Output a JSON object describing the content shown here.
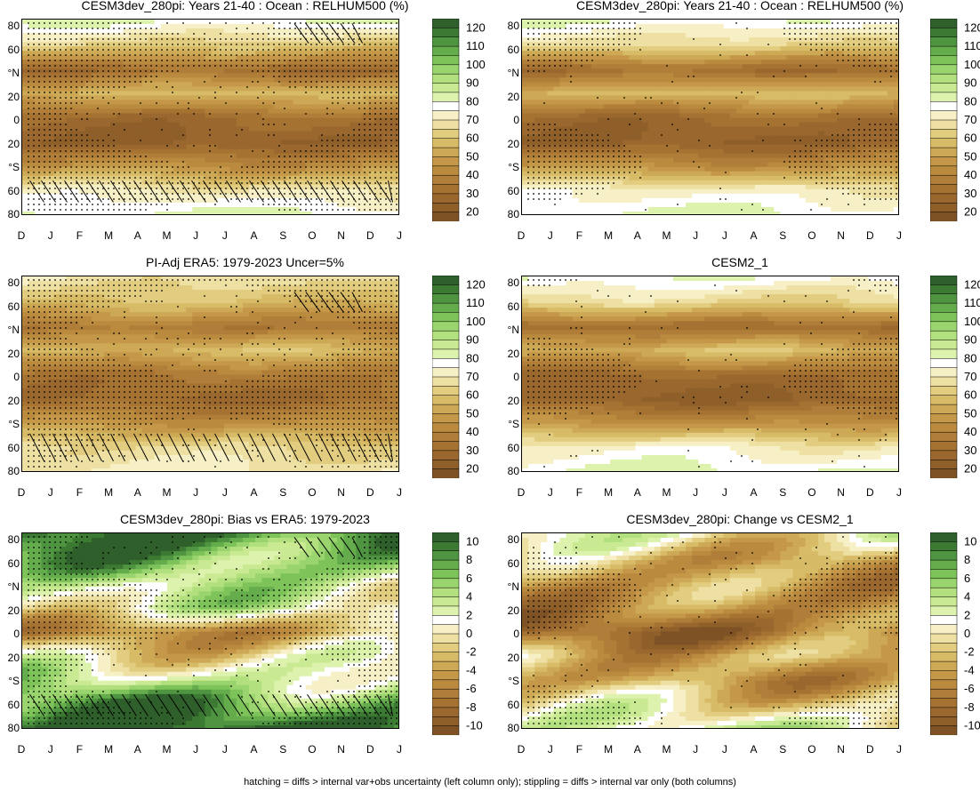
{
  "footnote": "hatching = diffs > internal var+obs uncertainty (left column only); stippling = diffs > internal var only (both columns)",
  "chart_data": [
    {
      "type": "heatmap",
      "title": "CESM3dev_280pi: Years 21-40 : Ocean : RELHUM500 (%)",
      "ylabel_ticks": [
        "80",
        "60",
        "°N",
        "20",
        "0",
        "20",
        "°S",
        "60",
        "80"
      ],
      "xlabel_ticks": [
        "D",
        "J",
        "F",
        "M",
        "A",
        "M",
        "J",
        "J",
        "A",
        "S",
        "O",
        "N",
        "D",
        "J"
      ],
      "colorbar_ticks": [
        "120",
        "110",
        "100",
        "90",
        "80",
        "70",
        "60",
        "50",
        "40",
        "30",
        "20"
      ],
      "colorbar_levels": [
        125,
        120,
        115,
        110,
        105,
        100,
        95,
        90,
        85,
        80,
        75,
        70,
        65,
        60,
        55,
        50,
        45,
        40,
        35,
        30,
        25,
        20,
        15
      ],
      "palette": "brown-green",
      "stipple": "heavy",
      "hatch": [
        [
          0.72,
          0.02,
          0.9,
          0.12
        ],
        [
          0.02,
          0.82,
          0.98,
          0.93
        ]
      ],
      "profile": [
        [
          80,
          80
        ],
        [
          62,
          62
        ],
        [
          30,
          30
        ],
        [
          55,
          58
        ],
        [
          30,
          30
        ],
        [
          25,
          25
        ],
        [
          45,
          45
        ],
        [
          70,
          70
        ],
        [
          80,
          80
        ]
      ]
    },
    {
      "type": "heatmap",
      "title": "CESM3dev_280pi: Years 21-40 : Ocean : RELHUM500 (%)",
      "ylabel_ticks": [
        "80",
        "60",
        "°N",
        "20",
        "0",
        "20",
        "°S",
        "60",
        "80"
      ],
      "xlabel_ticks": [
        "D",
        "J",
        "F",
        "M",
        "A",
        "M",
        "J",
        "J",
        "A",
        "S",
        "O",
        "N",
        "D",
        "J"
      ],
      "colorbar_ticks": [
        "120",
        "110",
        "100",
        "90",
        "80",
        "70",
        "60",
        "50",
        "40",
        "30",
        "20"
      ],
      "colorbar_levels": [
        125,
        120,
        115,
        110,
        105,
        100,
        95,
        90,
        85,
        80,
        75,
        70,
        65,
        60,
        55,
        50,
        45,
        40,
        35,
        30,
        25,
        20,
        15
      ],
      "palette": "brown-green",
      "stipple": "light",
      "hatch": [],
      "profile": [
        [
          78,
          80
        ],
        [
          66,
          64
        ],
        [
          30,
          30
        ],
        [
          55,
          58
        ],
        [
          30,
          30
        ],
        [
          25,
          25
        ],
        [
          45,
          45
        ],
        [
          72,
          72
        ],
        [
          80,
          80
        ]
      ]
    },
    {
      "type": "heatmap",
      "title": "PI-Adj ERA5: 1979-2023 Uncer=5%",
      "ylabel_ticks": [
        "80",
        "60",
        "°N",
        "20",
        "0",
        "20",
        "°S",
        "60",
        "80"
      ],
      "xlabel_ticks": [
        "D",
        "J",
        "F",
        "M",
        "A",
        "M",
        "J",
        "J",
        "A",
        "S",
        "O",
        "N",
        "D",
        "J"
      ],
      "colorbar_ticks": [
        "120",
        "110",
        "100",
        "90",
        "80",
        "70",
        "60",
        "50",
        "40",
        "30",
        "20"
      ],
      "colorbar_levels": [
        125,
        120,
        115,
        110,
        105,
        100,
        95,
        90,
        85,
        80,
        75,
        70,
        65,
        60,
        55,
        50,
        45,
        40,
        35,
        30,
        25,
        20,
        15
      ],
      "palette": "brown-green",
      "stipple": "heavy",
      "hatch": [
        [
          0.72,
          0.08,
          0.9,
          0.18
        ],
        [
          0.02,
          0.8,
          0.98,
          0.94
        ]
      ],
      "profile": [
        [
          68,
          68
        ],
        [
          58,
          58
        ],
        [
          35,
          35
        ],
        [
          55,
          58
        ],
        [
          35,
          35
        ],
        [
          30,
          30
        ],
        [
          45,
          45
        ],
        [
          65,
          65
        ],
        [
          70,
          70
        ]
      ]
    },
    {
      "type": "heatmap",
      "title": "CESM2_1",
      "ylabel_ticks": [
        "80",
        "60",
        "°N",
        "20",
        "0",
        "20",
        "°S",
        "60",
        "80"
      ],
      "xlabel_ticks": [
        "D",
        "J",
        "F",
        "M",
        "A",
        "M",
        "J",
        "J",
        "A",
        "S",
        "O",
        "N",
        "D",
        "J"
      ],
      "colorbar_ticks": [
        "120",
        "110",
        "100",
        "90",
        "80",
        "70",
        "60",
        "50",
        "40",
        "30",
        "20"
      ],
      "colorbar_levels": [
        125,
        120,
        115,
        110,
        105,
        100,
        95,
        90,
        85,
        80,
        75,
        70,
        65,
        60,
        55,
        50,
        45,
        40,
        35,
        30,
        25,
        20,
        15
      ],
      "palette": "brown-green",
      "stipple": "light",
      "hatch": [],
      "profile": [
        [
          78,
          80
        ],
        [
          66,
          64
        ],
        [
          30,
          30
        ],
        [
          55,
          58
        ],
        [
          30,
          30
        ],
        [
          25,
          25
        ],
        [
          45,
          45
        ],
        [
          72,
          72
        ],
        [
          80,
          80
        ]
      ]
    },
    {
      "type": "heatmap",
      "title": "CESM3dev_280pi: Bias vs ERA5: 1979-2023",
      "ylabel_ticks": [
        "80",
        "60",
        "°N",
        "20",
        "0",
        "20",
        "°S",
        "60",
        "80"
      ],
      "xlabel_ticks": [
        "D",
        "J",
        "F",
        "M",
        "A",
        "M",
        "J",
        "J",
        "A",
        "S",
        "O",
        "N",
        "D",
        "J"
      ],
      "colorbar_ticks": [
        "10",
        "8",
        "6",
        "4",
        "2",
        "0",
        "-2",
        "-4",
        "-6",
        "-8",
        "-10"
      ],
      "colorbar_levels": [
        11,
        10,
        9,
        8,
        7,
        6,
        5,
        4,
        3,
        2,
        1,
        0,
        -1,
        -2,
        -3,
        -4,
        -5,
        -6,
        -7,
        -8,
        -9,
        -10,
        -11
      ],
      "palette": "brown-green",
      "stipple": "heavy",
      "hatch": [
        [
          0.72,
          0.02,
          0.9,
          0.12
        ],
        [
          0.02,
          0.82,
          0.98,
          0.93
        ]
      ],
      "profile": [
        [
          10,
          10
        ],
        [
          7,
          6
        ],
        [
          3,
          3
        ],
        [
          2,
          2
        ],
        [
          -5,
          -5
        ],
        [
          0,
          0
        ],
        [
          4,
          3
        ],
        [
          8,
          8
        ],
        [
          10,
          10
        ]
      ]
    },
    {
      "type": "heatmap",
      "title": "CESM3dev_280pi: Change vs CESM2_1",
      "ylabel_ticks": [
        "80",
        "60",
        "°N",
        "20",
        "0",
        "20",
        "°S",
        "60",
        "80"
      ],
      "xlabel_ticks": [
        "D",
        "J",
        "F",
        "M",
        "A",
        "M",
        "J",
        "J",
        "A",
        "S",
        "O",
        "N",
        "D",
        "J"
      ],
      "colorbar_ticks": [
        "10",
        "8",
        "6",
        "4",
        "2",
        "0",
        "-2",
        "-4",
        "-6",
        "-8",
        "-10"
      ],
      "colorbar_levels": [
        11,
        10,
        9,
        8,
        7,
        6,
        5,
        4,
        3,
        2,
        1,
        0,
        -1,
        -2,
        -3,
        -4,
        -5,
        -6,
        -7,
        -8,
        -9,
        -10,
        -11
      ],
      "palette": "brown-green",
      "stipple": "light",
      "hatch": [],
      "profile": [
        [
          1,
          1
        ],
        [
          -3,
          -4
        ],
        [
          -4,
          -5
        ],
        [
          -5,
          -6
        ],
        [
          -8,
          -8
        ],
        [
          -3,
          -3
        ],
        [
          -4,
          -4
        ],
        [
          -1,
          -1
        ],
        [
          2,
          2
        ]
      ]
    }
  ]
}
